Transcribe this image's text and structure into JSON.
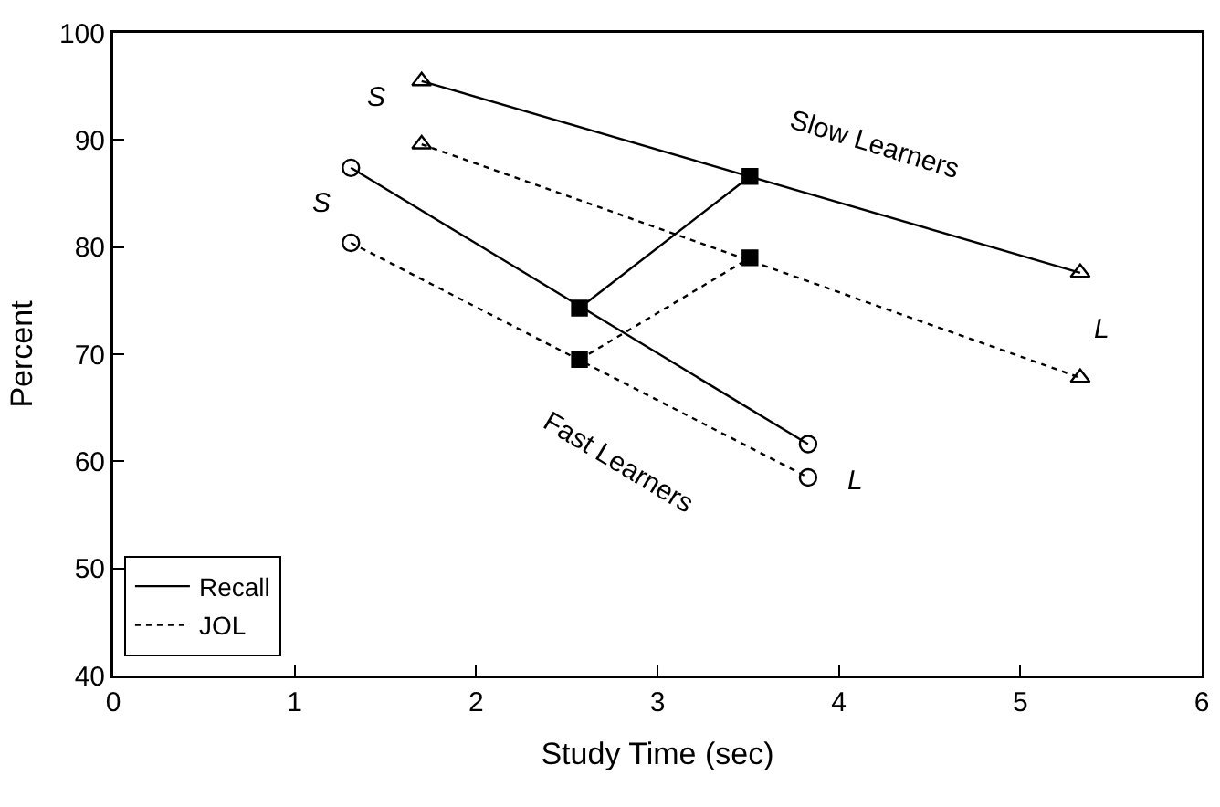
{
  "chart_data": {
    "type": "line",
    "xlabel": "Study Time (sec)",
    "ylabel": "Percent",
    "xlim": [
      0,
      6
    ],
    "xticks": [
      0,
      1,
      2,
      3,
      4,
      5,
      6
    ],
    "ylim": [
      40,
      100
    ],
    "yticks": [
      40,
      50,
      60,
      70,
      80,
      90,
      100
    ],
    "grid": false,
    "legend": "bottom left",
    "series": [
      {
        "x": [
          1.7,
          5.33
        ],
        "values": [
          95.5,
          77.6
        ],
        "color": "#000000",
        "line_style": "solid",
        "marker": "triangle"
      },
      {
        "x": [
          1.7,
          5.33
        ],
        "values": [
          89.6,
          67.8
        ],
        "color": "#000000",
        "line_style": "dotted",
        "marker": "triangle"
      },
      {
        "x": [
          1.31,
          3.83
        ],
        "values": [
          87.4,
          61.6
        ],
        "color": "#000000",
        "line_style": "solid",
        "marker": "circle"
      },
      {
        "x": [
          1.31,
          3.83
        ],
        "values": [
          80.4,
          58.5
        ],
        "color": "#000000",
        "line_style": "dotted",
        "marker": "circle"
      },
      {
        "name": "Recall",
        "x": [
          2.57,
          3.51
        ],
        "values": [
          74.3,
          86.6
        ],
        "color": "#000000",
        "line_style": "solid",
        "marker": "square"
      },
      {
        "name": "JOL",
        "x": [
          2.57,
          3.51
        ],
        "values": [
          69.5,
          79.0
        ],
        "color": "#000000",
        "line_style": "dotted",
        "marker": "square"
      }
    ],
    "annotations": [
      "S",
      "S",
      "L",
      "L",
      "Slow Learners",
      "Fast Learners"
    ]
  }
}
